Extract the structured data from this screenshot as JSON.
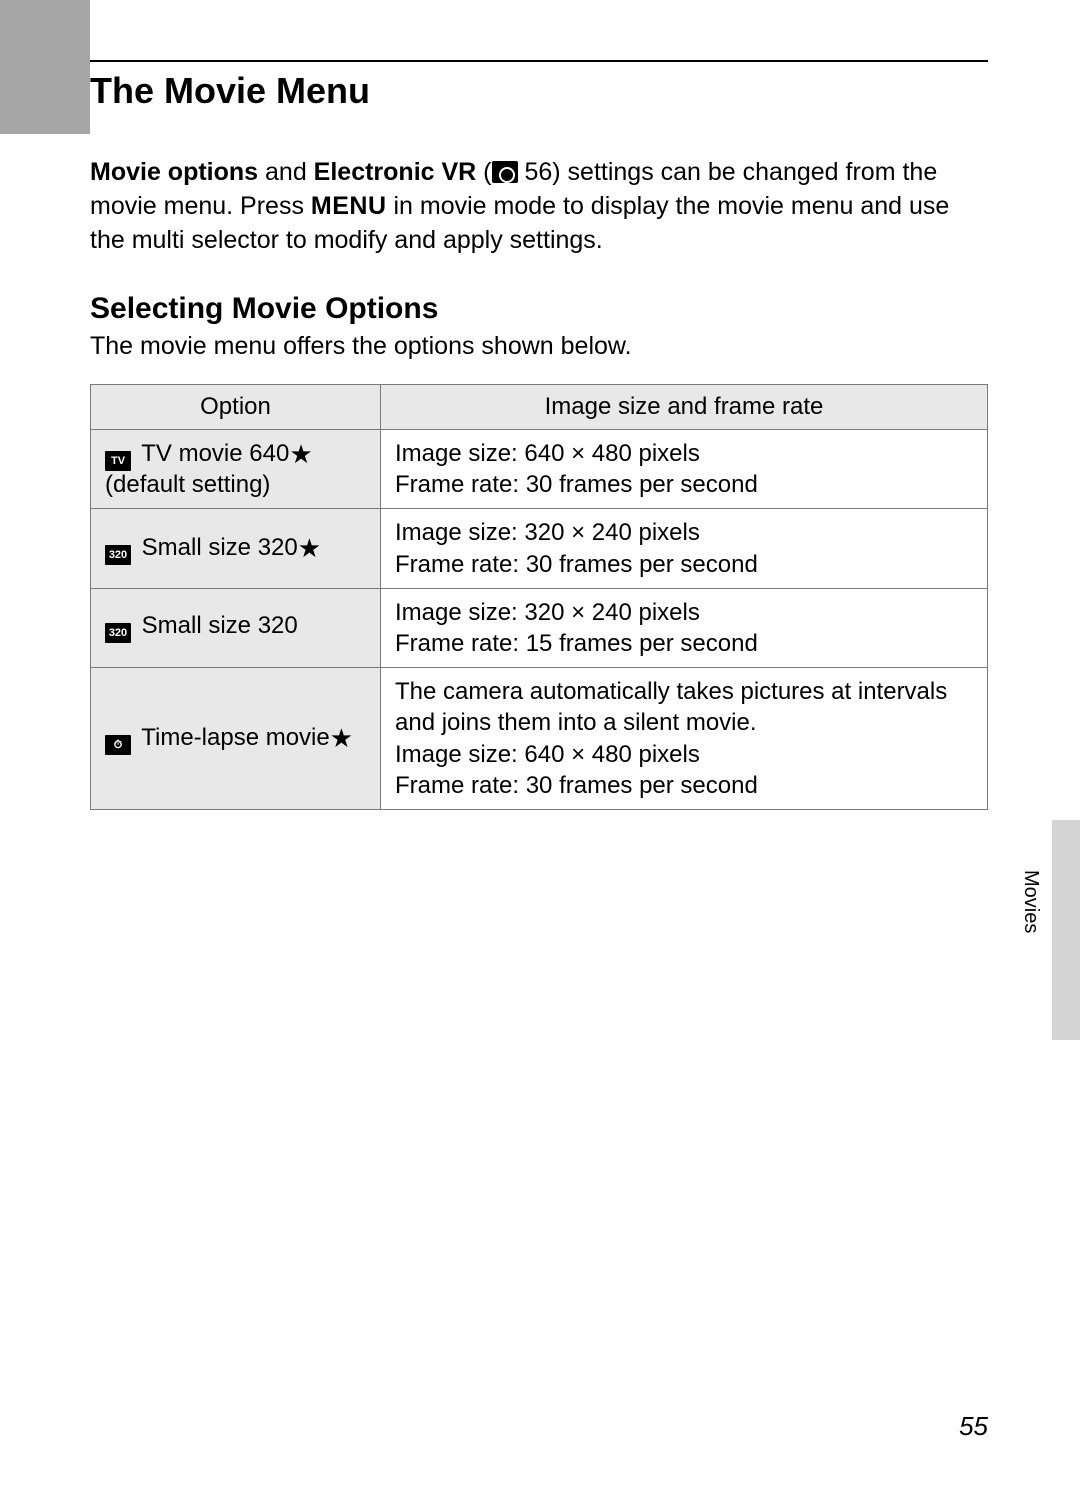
{
  "title": "The Movie Menu",
  "intro": {
    "bold1": "Movie options",
    "mid1": " and ",
    "bold2": "Electronic VR",
    "mid2": " (",
    "ref": " 56) settings can be changed from the movie menu. Press ",
    "menu_word": "MENU",
    "tail": " in movie mode to display the movie menu and use the multi selector to modify and apply settings."
  },
  "subhead": "Selecting Movie Options",
  "subtext": "The movie menu offers the options shown below.",
  "table": {
    "head_option": "Option",
    "head_desc": "Image size and frame rate",
    "rows": [
      {
        "icon": "TV",
        "label": " TV movie 640",
        "star": "★",
        "sub": "(default setting)",
        "desc1": "Image size: 640 × 480 pixels",
        "desc2": "Frame rate: 30 frames per second"
      },
      {
        "icon": "320",
        "label": " Small size 320",
        "star": "★",
        "sub": "",
        "desc1": "Image size: 320 × 240 pixels",
        "desc2": "Frame rate: 30 frames per second"
      },
      {
        "icon": "320",
        "label": " Small size 320",
        "star": "",
        "sub": "",
        "desc1": "Image size: 320 × 240 pixels",
        "desc2": "Frame rate: 15 frames per second"
      },
      {
        "icon": "⏱",
        "label": " Time-lapse movie",
        "star": "★",
        "sub": "",
        "desc1": "The camera automatically takes pictures at intervals and joins them into a silent movie.",
        "desc2": "Image size: 640 × 480 pixels",
        "desc3": "Frame rate: 30 frames per second"
      }
    ]
  },
  "side_label": "Movies",
  "page_number": "55",
  "colors": {
    "gray_band": "#a6a6a6",
    "table_header_bg": "#e8e8e8",
    "border": "#7a7a7a",
    "side_tab": "#d4d4d4"
  }
}
